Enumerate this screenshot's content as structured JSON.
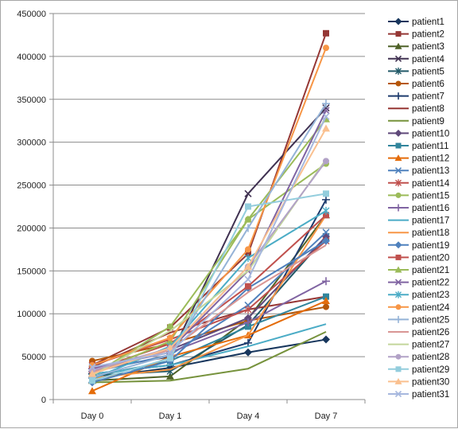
{
  "chart_data": {
    "type": "line",
    "title": "",
    "xlabel": "",
    "ylabel": "",
    "categories": [
      "Day 0",
      "Day 1",
      "Day 4",
      "Day 7"
    ],
    "ylim": [
      0,
      450000
    ],
    "yticks": [
      0,
      50000,
      100000,
      150000,
      200000,
      250000,
      300000,
      350000,
      400000,
      450000
    ],
    "grid": "horizontal",
    "legend_position": "right",
    "series": [
      {
        "name": "patient1",
        "color": "#17365d",
        "marker": "diamond",
        "values": [
          25000,
          37000,
          55000,
          70000
        ]
      },
      {
        "name": "patient2",
        "color": "#953735",
        "marker": "square",
        "values": [
          40000,
          84000,
          170000,
          427000
        ]
      },
      {
        "name": "patient3",
        "color": "#4f6228",
        "marker": "triangle",
        "values": [
          22000,
          27000,
          94000,
          215000
        ]
      },
      {
        "name": "patient4",
        "color": "#403151",
        "marker": "x",
        "values": [
          35000,
          50000,
          240000,
          340000
        ]
      },
      {
        "name": "patient5",
        "color": "#215968",
        "marker": "star",
        "values": [
          28000,
          33000,
          87000,
          190000
        ]
      },
      {
        "name": "patient6",
        "color": "#b65708",
        "marker": "circle",
        "values": [
          45000,
          65000,
          92000,
          108000
        ]
      },
      {
        "name": "patient7",
        "color": "#1f3c6e",
        "marker": "plus",
        "values": [
          30000,
          40000,
          66000,
          233000
        ]
      },
      {
        "name": "patient8",
        "color": "#963634",
        "marker": "none",
        "values": [
          38000,
          78000,
          105000,
          120000
        ]
      },
      {
        "name": "patient9",
        "color": "#76923c",
        "marker": "none",
        "values": [
          20000,
          22000,
          36000,
          79000
        ]
      },
      {
        "name": "patient10",
        "color": "#5f497a",
        "marker": "diamond",
        "values": [
          33000,
          58000,
          95000,
          190000
        ]
      },
      {
        "name": "patient11",
        "color": "#31859c",
        "marker": "square",
        "values": [
          27000,
          45000,
          85000,
          120000
        ]
      },
      {
        "name": "patient12",
        "color": "#e46c0a",
        "marker": "triangle",
        "values": [
          10000,
          50000,
          75000,
          115000
        ]
      },
      {
        "name": "patient13",
        "color": "#4f81bd",
        "marker": "x",
        "values": [
          32000,
          52000,
          110000,
          195000
        ]
      },
      {
        "name": "patient14",
        "color": "#c0504d",
        "marker": "star",
        "values": [
          40000,
          70000,
          105000,
          185000
        ]
      },
      {
        "name": "patient15",
        "color": "#9bbb59",
        "marker": "circle",
        "values": [
          28000,
          85000,
          210000,
          275000
        ]
      },
      {
        "name": "patient16",
        "color": "#8064a2",
        "marker": "plus",
        "values": [
          36000,
          55000,
          90000,
          138000
        ]
      },
      {
        "name": "patient17",
        "color": "#4bacc6",
        "marker": "none",
        "values": [
          30000,
          40000,
          62000,
          88000
        ]
      },
      {
        "name": "patient18",
        "color": "#f79646",
        "marker": "none",
        "values": [
          25000,
          35000,
          75000,
          215000
        ]
      },
      {
        "name": "patient19",
        "color": "#4f81bd",
        "marker": "diamond",
        "values": [
          20000,
          45000,
          130000,
          185000
        ]
      },
      {
        "name": "patient20",
        "color": "#c0504d",
        "marker": "square",
        "values": [
          34000,
          65000,
          132000,
          215000
        ]
      },
      {
        "name": "patient21",
        "color": "#9bbb59",
        "marker": "triangle",
        "values": [
          30000,
          68000,
          210000,
          327000
        ]
      },
      {
        "name": "patient22",
        "color": "#8064a2",
        "marker": "x",
        "values": [
          36000,
          58000,
          150000,
          337000
        ]
      },
      {
        "name": "patient23",
        "color": "#4bacc6",
        "marker": "star",
        "values": [
          24000,
          62000,
          165000,
          220000
        ]
      },
      {
        "name": "patient24",
        "color": "#f79646",
        "marker": "circle",
        "values": [
          40000,
          72000,
          175000,
          410000
        ]
      },
      {
        "name": "patient25",
        "color": "#95b3d7",
        "marker": "plus",
        "values": [
          26000,
          52000,
          200000,
          345000
        ]
      },
      {
        "name": "patient26",
        "color": "#d99694",
        "marker": "none",
        "values": [
          32000,
          58000,
          125000,
          180000
        ]
      },
      {
        "name": "patient27",
        "color": "#c3d69b",
        "marker": "none",
        "values": [
          28000,
          80000,
          150000,
          280000
        ]
      },
      {
        "name": "patient28",
        "color": "#b2a2c7",
        "marker": "circle",
        "values": [
          34000,
          60000,
          155000,
          278000
        ]
      },
      {
        "name": "patient29",
        "color": "#93cddd",
        "marker": "square",
        "values": [
          22000,
          48000,
          225000,
          240000
        ]
      },
      {
        "name": "patient30",
        "color": "#fac08f",
        "marker": "triangle",
        "values": [
          30000,
          60000,
          155000,
          316000
        ]
      },
      {
        "name": "patient31",
        "color": "#a6b7de",
        "marker": "x",
        "values": [
          38000,
          55000,
          140000,
          330000
        ]
      }
    ]
  }
}
